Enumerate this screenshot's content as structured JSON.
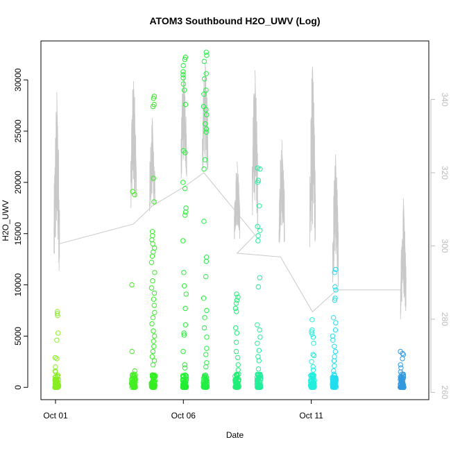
{
  "chart_data": {
    "type": "scatter",
    "title": "ATOM3 Southbound H2O_UWV (Log)",
    "xlabel": "Date",
    "ylabel": "H2O_UWV",
    "y2label": "",
    "x_range_days": [
      0,
      14
    ],
    "x_ticks": [
      {
        "day": 0,
        "label": "Oct 01"
      },
      {
        "day": 5,
        "label": "Oct 06"
      },
      {
        "day": 10,
        "label": "Oct 11"
      }
    ],
    "ylim": [
      -1200,
      33800
    ],
    "y_ticks": [
      0,
      5000,
      10000,
      15000,
      20000,
      25000,
      30000
    ],
    "y2lim": [
      258,
      356
    ],
    "y2_ticks": [
      260,
      280,
      300,
      320,
      340
    ],
    "colors": {
      "axis": "#000000",
      "secondary_axis": "#bbbbbb",
      "line": "#c8c8c8"
    },
    "line_series": {
      "axis": "secondary",
      "bursts": [
        {
          "day": 0.05,
          "low": 278,
          "high": 342
        },
        {
          "day": 3.05,
          "low": 300,
          "high": 345
        },
        {
          "day": 3.78,
          "low": 300,
          "high": 335
        },
        {
          "day": 5.02,
          "low": 310,
          "high": 348
        },
        {
          "day": 5.85,
          "low": 310,
          "high": 350
        },
        {
          "day": 7.1,
          "low": 296,
          "high": 323
        },
        {
          "day": 7.8,
          "low": 293,
          "high": 348
        },
        {
          "day": 8.85,
          "low": 292,
          "high": 329
        },
        {
          "day": 10.05,
          "low": 282,
          "high": 349
        },
        {
          "day": 10.95,
          "low": 280,
          "high": 325
        },
        {
          "day": 13.6,
          "low": 272,
          "high": 313
        }
      ],
      "connector": [
        [
          0.1,
          300.5
        ],
        [
          3.05,
          306
        ],
        [
          3.8,
          311
        ],
        [
          5.0,
          316
        ],
        [
          5.8,
          320
        ],
        [
          7.8,
          303
        ],
        [
          7.1,
          298
        ],
        [
          8.8,
          297
        ],
        [
          10.05,
          282
        ],
        [
          11.0,
          288
        ],
        [
          13.5,
          288
        ]
      ]
    },
    "scatter_series": [
      {
        "day": 0.05,
        "color": "#88ee22",
        "high_points": [
          7400,
          7200,
          7000,
          5300,
          4600,
          2900,
          2800,
          2000,
          1600,
          1500
        ]
      },
      {
        "day": 3.05,
        "color": "#44ee22",
        "high_points": [
          19100,
          18800,
          10000,
          3500,
          1600,
          1300
        ]
      },
      {
        "day": 3.82,
        "color": "#33ee22",
        "high_points": [
          28400,
          28200,
          27600,
          27400,
          20400,
          18100,
          15200,
          14800,
          14400,
          14000,
          13600,
          13200,
          12800,
          12200,
          11200,
          10400,
          9700,
          9200,
          8600,
          8000,
          7300,
          6800,
          6200,
          5500,
          5000,
          4500,
          4000,
          3500,
          3000,
          2600,
          2200
        ]
      },
      {
        "day": 5.05,
        "color": "#22ee33",
        "high_points": [
          32200,
          32000,
          31400,
          30800,
          30500,
          30200,
          29600,
          29000,
          27600,
          23100,
          22900,
          20000,
          19400,
          17500,
          17100,
          16800,
          14300,
          11200,
          9900,
          9100,
          7700,
          6100,
          5300,
          5100,
          3500,
          2200,
          1900
        ]
      },
      {
        "day": 5.85,
        "color": "#22ee44",
        "high_points": [
          32700,
          32400,
          31800,
          30600,
          30100,
          29000,
          28600,
          27400,
          27100,
          26600,
          25700,
          25200,
          24900,
          22200,
          21300,
          16200,
          12700,
          12300,
          10800,
          8700,
          7500,
          6800,
          5800,
          4900,
          3800,
          3200,
          2400,
          2000
        ]
      },
      {
        "day": 7.1,
        "color": "#22ee77",
        "high_points": [
          9100,
          8800,
          8500,
          8200,
          7700,
          7400,
          5800,
          5300,
          4400,
          3500,
          2900,
          2200,
          1700
        ]
      },
      {
        "day": 7.95,
        "color": "#22ee99",
        "high_points": [
          21400,
          21300,
          20200,
          20000,
          17700,
          15700,
          15300,
          14800,
          14300,
          10700,
          9800,
          6100,
          5600,
          4900,
          4300,
          3600,
          3000,
          2600,
          1800
        ]
      },
      {
        "day": 10.05,
        "color": "#22eedd",
        "high_points": [
          6600,
          5600,
          5400,
          5200,
          4900,
          4300,
          3200,
          3100,
          2500,
          2000,
          1700
        ]
      },
      {
        "day": 10.9,
        "color": "#22ddee",
        "high_points": [
          11500,
          11200,
          9800,
          9500,
          8700,
          8500,
          6800,
          6300,
          5600,
          5000,
          4600,
          4000,
          3500,
          3000,
          2600,
          2100,
          1600
        ]
      },
      {
        "day": 13.55,
        "color": "#3399dd",
        "high_points": [
          3500,
          3300,
          3200,
          2800,
          2200,
          1900,
          1500,
          1300,
          1100
        ]
      }
    ]
  }
}
